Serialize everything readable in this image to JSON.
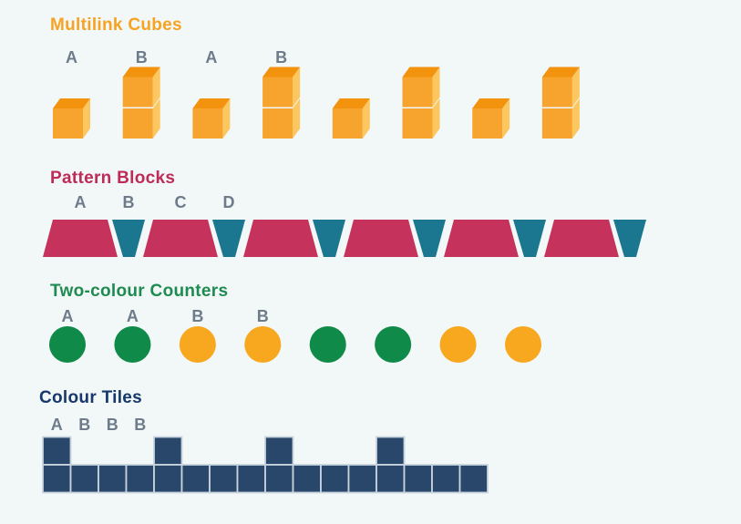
{
  "page": {
    "background": "#F2F7F8",
    "label_color": "#6E7B8A"
  },
  "sections": {
    "multilink_cubes": {
      "title": "Multilink Cubes",
      "title_color": "#F6A323",
      "labels": [
        "A",
        "B",
        "A",
        "B"
      ],
      "pattern": [
        1,
        2,
        1,
        2,
        1,
        2,
        1,
        2
      ],
      "colors": {
        "front": "#F7A42F",
        "top": "#F2920D",
        "side": "#FCC75F"
      }
    },
    "pattern_blocks": {
      "title": "Pattern Blocks",
      "title_color": "#BE2B57",
      "labels": [
        "A",
        "B",
        "C",
        "D"
      ],
      "pattern": [
        "red",
        "teal",
        "red",
        "teal",
        "red",
        "teal",
        "red",
        "teal",
        "red",
        "teal",
        "red",
        "teal"
      ],
      "colors": {
        "red": "#C5335C",
        "teal": "#1B7690"
      }
    },
    "two_colour_counters": {
      "title": "Two-colour Counters",
      "title_color": "#1E8B51",
      "labels": [
        "A",
        "A",
        "B",
        "B"
      ],
      "pattern": [
        "green",
        "green",
        "orange",
        "orange",
        "green",
        "green",
        "orange",
        "orange"
      ],
      "colors": {
        "green": "#0F8A48",
        "orange": "#F7A81F"
      }
    },
    "colour_tiles": {
      "title": "Colour Tiles",
      "title_color": "#17386B",
      "labels": [
        "A",
        "B",
        "B",
        "B"
      ],
      "columns": [
        2,
        1,
        1,
        1,
        2,
        1,
        1,
        1,
        2,
        1,
        1,
        1,
        2,
        1,
        1,
        1
      ],
      "colors": {
        "tile": "#28476B",
        "tile_border": "#C7D4DE"
      }
    }
  }
}
